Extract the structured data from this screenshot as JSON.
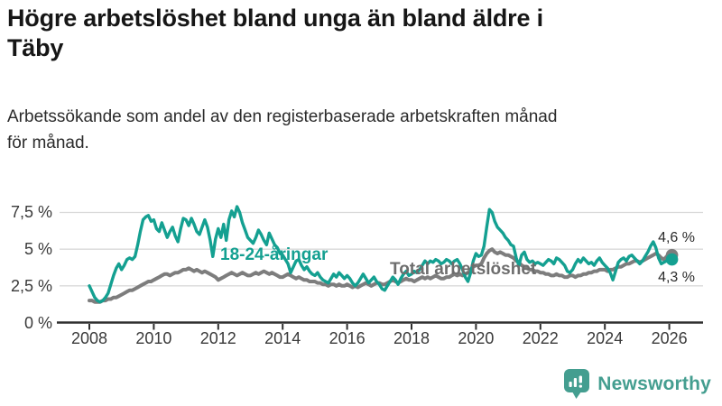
{
  "chart_data": {
    "type": "line",
    "title_lines": [
      "Högre arbetslöshet bland unga än bland äldre i",
      "Täby"
    ],
    "subtitle_lines": [
      "Arbetssökande som andel av den registerbaserade arbetskraften månad",
      "för månad."
    ],
    "unit": "%",
    "x_start": "2008-01",
    "x_interval": "monthly",
    "ylim": [
      0,
      8
    ],
    "grid": "horizontal",
    "legend_position": "inline-labels",
    "y_ticks": [
      {
        "v": 7.5,
        "label": "7,5 %"
      },
      {
        "v": 5,
        "label": "5 %"
      },
      {
        "v": 2.5,
        "label": "2,5 %"
      },
      {
        "v": 0,
        "label": "0 %"
      }
    ],
    "x_tick_years": [
      2008,
      2010,
      2012,
      2014,
      2016,
      2018,
      2020,
      2022,
      2024,
      2026
    ],
    "series": [
      {
        "name": "18-24-åringar",
        "color": "#14A091",
        "end_label": "4,3 %",
        "last_value": 4.3,
        "values": [
          2.5,
          2.1,
          1.7,
          1.5,
          1.4,
          1.5,
          1.7,
          2.0,
          2.6,
          3.2,
          3.7,
          4.0,
          3.6,
          3.9,
          4.3,
          4.4,
          4.3,
          4.5,
          5.3,
          6.2,
          7.0,
          7.2,
          7.3,
          6.9,
          7.0,
          6.4,
          6.2,
          6.8,
          6.3,
          5.8,
          6.2,
          6.5,
          5.9,
          5.5,
          6.4,
          7.1,
          7.0,
          6.6,
          7.1,
          6.7,
          6.2,
          6.0,
          6.5,
          7.0,
          6.5,
          5.6,
          4.5,
          5.7,
          6.4,
          5.8,
          6.7,
          5.6,
          7.0,
          7.6,
          7.2,
          7.9,
          7.5,
          6.8,
          6.3,
          5.8,
          5.6,
          5.4,
          5.8,
          6.3,
          6.0,
          5.6,
          5.3,
          6.1,
          5.7,
          5.3,
          5.1,
          4.7,
          4.6,
          4.3,
          4.0,
          3.4,
          3.8,
          4.2,
          4.3,
          3.9,
          3.6,
          3.8,
          3.5,
          3.3,
          3.2,
          3.4,
          3.1,
          2.9,
          2.8,
          2.7,
          3.0,
          3.3,
          3.1,
          3.4,
          3.2,
          3.0,
          3.2,
          3.0,
          2.7,
          2.5,
          2.7,
          3.0,
          3.3,
          3.0,
          2.7,
          2.9,
          3.1,
          2.8,
          2.6,
          2.3,
          2.2,
          2.5,
          2.8,
          3.1,
          2.9,
          2.6,
          3.0,
          3.3,
          3.5,
          3.2,
          3.3,
          3.5,
          3.4,
          3.6,
          3.9,
          4.2,
          4.0,
          4.2,
          4.1,
          4.3,
          4.2,
          4.0,
          4.1,
          4.3,
          4.2,
          4.0,
          4.2,
          4.3,
          4.0,
          3.6,
          3.1,
          2.8,
          3.4,
          4.2,
          4.7,
          4.5,
          4.6,
          5.2,
          6.5,
          7.7,
          7.5,
          6.9,
          6.5,
          6.3,
          6.1,
          5.8,
          5.6,
          5.3,
          5.2,
          4.4,
          3.9,
          4.6,
          4.8,
          4.3,
          4.1,
          4.2,
          4.0,
          4.1,
          4.0,
          3.9,
          4.1,
          4.3,
          4.2,
          4.0,
          4.4,
          4.3,
          4.1,
          3.9,
          3.5,
          3.4,
          3.6,
          4.0,
          4.3,
          4.1,
          4.4,
          4.2,
          4.0,
          4.1,
          3.9,
          4.2,
          4.4,
          4.1,
          3.9,
          3.7,
          3.4,
          2.9,
          3.5,
          4.1,
          4.3,
          4.4,
          4.2,
          4.5,
          4.6,
          4.4,
          4.2,
          4.0,
          4.2,
          4.5,
          4.8,
          5.2,
          5.5,
          5.1,
          4.4,
          4.0,
          4.1,
          4.2,
          4.4,
          4.3
        ]
      },
      {
        "name": "Total arbetslöshet",
        "color": "#7d7d7d",
        "end_label": "4,6 %",
        "last_value": 4.6,
        "values": [
          1.5,
          1.5,
          1.4,
          1.4,
          1.4,
          1.5,
          1.5,
          1.6,
          1.6,
          1.7,
          1.7,
          1.8,
          1.9,
          2.0,
          2.1,
          2.2,
          2.2,
          2.3,
          2.4,
          2.5,
          2.6,
          2.7,
          2.8,
          2.8,
          2.9,
          3.0,
          3.1,
          3.2,
          3.3,
          3.3,
          3.2,
          3.3,
          3.4,
          3.4,
          3.5,
          3.6,
          3.6,
          3.7,
          3.6,
          3.5,
          3.6,
          3.5,
          3.4,
          3.5,
          3.4,
          3.3,
          3.2,
          3.1,
          2.9,
          3.0,
          3.1,
          3.2,
          3.3,
          3.4,
          3.3,
          3.2,
          3.3,
          3.4,
          3.3,
          3.2,
          3.2,
          3.3,
          3.4,
          3.3,
          3.4,
          3.5,
          3.4,
          3.3,
          3.4,
          3.3,
          3.2,
          3.1,
          3.1,
          3.2,
          3.3,
          3.2,
          3.1,
          3.0,
          3.1,
          3.0,
          2.9,
          2.9,
          2.8,
          2.8,
          2.8,
          2.7,
          2.7,
          2.6,
          2.6,
          2.5,
          2.6,
          2.6,
          2.5,
          2.6,
          2.5,
          2.5,
          2.6,
          2.5,
          2.4,
          2.5,
          2.4,
          2.5,
          2.6,
          2.7,
          2.6,
          2.5,
          2.6,
          2.7,
          2.7,
          2.6,
          2.6,
          2.7,
          2.8,
          2.9,
          2.8,
          2.7,
          2.8,
          2.9,
          3.0,
          2.9,
          2.9,
          2.8,
          2.9,
          3.0,
          3.1,
          3.0,
          3.1,
          3.0,
          3.1,
          3.2,
          3.1,
          3.0,
          3.0,
          3.1,
          3.1,
          3.2,
          3.3,
          3.2,
          3.3,
          3.2,
          3.3,
          3.4,
          3.6,
          3.8,
          3.9,
          3.9,
          4.0,
          4.4,
          4.7,
          4.9,
          5.0,
          4.8,
          4.7,
          4.8,
          4.7,
          4.6,
          4.6,
          4.5,
          4.4,
          4.2,
          4.1,
          3.9,
          3.8,
          3.7,
          3.6,
          3.6,
          3.5,
          3.5,
          3.4,
          3.4,
          3.3,
          3.3,
          3.2,
          3.2,
          3.3,
          3.2,
          3.2,
          3.1,
          3.1,
          3.2,
          3.2,
          3.1,
          3.2,
          3.2,
          3.3,
          3.3,
          3.4,
          3.4,
          3.5,
          3.5,
          3.6,
          3.6,
          3.6,
          3.5,
          3.6,
          3.6,
          3.7,
          3.8,
          3.8,
          3.9,
          4.0,
          4.0,
          4.1,
          4.2,
          4.2,
          4.1,
          4.2,
          4.3,
          4.4,
          4.5,
          4.6,
          4.7,
          4.6,
          4.4,
          4.3,
          4.5,
          4.6,
          4.6
        ]
      }
    ]
  },
  "footer": {
    "brand": "Newsworthy",
    "logo_icon": "bar-chart-speech-bubble-icon",
    "brand_color": "#449E90"
  },
  "colors": {
    "accent_teal": "#14A091",
    "line_gray": "#7d7d7d",
    "axis": "#2e2e2e",
    "gridline": "#d9d9d9",
    "background": "#ffffff"
  }
}
